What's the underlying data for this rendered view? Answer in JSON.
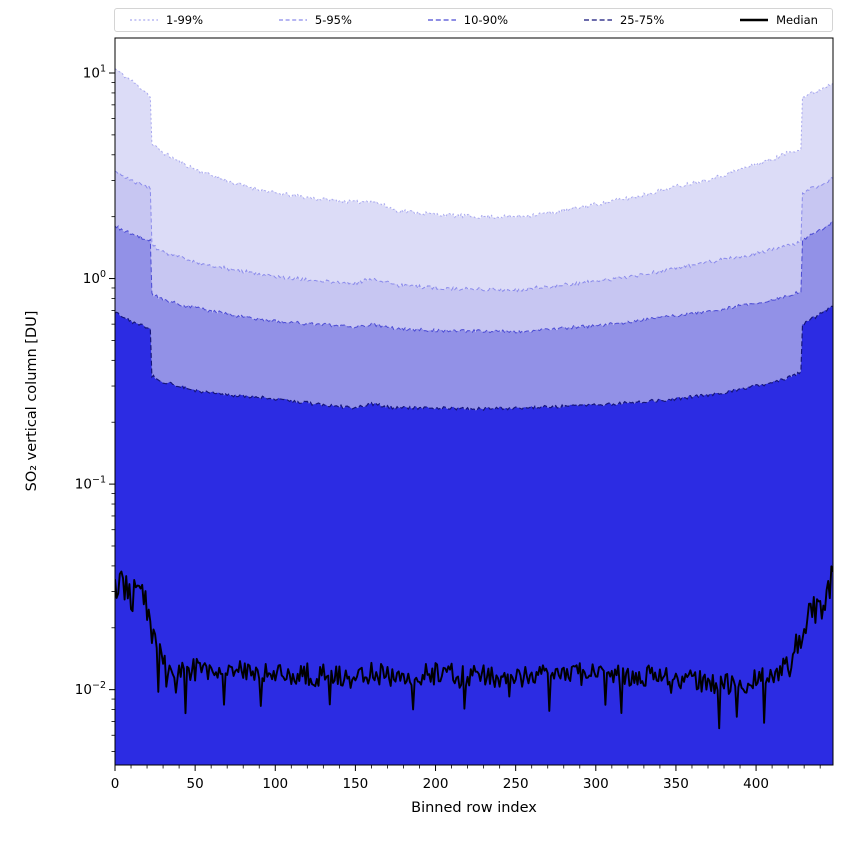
{
  "figure": {
    "background": "#ffffff"
  },
  "chart_data": {
    "type": "band",
    "title": "",
    "xlabel": "Binned row index",
    "ylabel": "SO₂ vertical column [DU]",
    "xscale": "linear",
    "yscale": "log",
    "grid": false,
    "legend_position": "top",
    "xlim": [
      0,
      448
    ],
    "ylim": [
      0.0043,
      14.8
    ],
    "xticks": [
      0,
      50,
      100,
      150,
      200,
      250,
      300,
      350,
      400
    ],
    "x_minor_step": 10,
    "yticks": [
      {
        "value": 0.01,
        "exp": "−2"
      },
      {
        "value": 0.1,
        "exp": "−1"
      },
      {
        "value": 1,
        "exp": "0"
      },
      {
        "value": 10,
        "exp": "1"
      }
    ],
    "seed": 11,
    "keypoint_x": [
      0,
      5,
      10,
      15,
      20,
      22,
      23,
      30,
      40,
      50,
      75,
      100,
      125,
      150,
      160,
      175,
      200,
      225,
      250,
      275,
      300,
      325,
      350,
      375,
      400,
      410,
      420,
      428,
      429,
      435,
      440,
      448
    ],
    "series": [
      {
        "name": "1-99%",
        "role": "band",
        "fill": "#dcdcf7",
        "edge": "#a9a9ef",
        "dash": "2 2.4",
        "width": 1,
        "noise": 0.01,
        "values": [
          10.5,
          9.8,
          9.2,
          8.6,
          8.0,
          7.6,
          4.5,
          4.1,
          3.7,
          3.4,
          2.9,
          2.6,
          2.45,
          2.35,
          2.4,
          2.15,
          2.05,
          2.0,
          2.0,
          2.1,
          2.3,
          2.5,
          2.8,
          3.1,
          3.6,
          3.8,
          4.1,
          4.3,
          7.6,
          8.0,
          8.3,
          9.0
        ]
      },
      {
        "name": "5-95%",
        "role": "band",
        "fill": "#c7c6f2",
        "edge": "#8b8beb",
        "dash": "4 2.6",
        "width": 1,
        "noise": 0.009,
        "values": [
          3.3,
          3.15,
          3.0,
          2.9,
          2.8,
          2.75,
          1.45,
          1.35,
          1.27,
          1.2,
          1.1,
          1.02,
          0.98,
          0.95,
          1.0,
          0.93,
          0.9,
          0.89,
          0.88,
          0.92,
          0.97,
          1.03,
          1.12,
          1.22,
          1.32,
          1.38,
          1.45,
          1.5,
          2.6,
          2.75,
          2.85,
          3.1
        ]
      },
      {
        "name": "10-90%",
        "role": "band",
        "fill": "#9291e7",
        "edge": "#4b4bd4",
        "dash": "5 2.8",
        "width": 1,
        "noise": 0.008,
        "values": [
          1.8,
          1.72,
          1.65,
          1.6,
          1.55,
          1.52,
          0.84,
          0.79,
          0.75,
          0.72,
          0.66,
          0.62,
          0.6,
          0.58,
          0.6,
          0.57,
          0.56,
          0.555,
          0.55,
          0.57,
          0.59,
          0.62,
          0.66,
          0.7,
          0.76,
          0.79,
          0.83,
          0.86,
          1.55,
          1.65,
          1.72,
          1.9
        ]
      },
      {
        "name": "25-75%",
        "role": "band",
        "fill": "#2c2ce3",
        "edge": "#15157a",
        "dash": "5 2.8",
        "width": 1.15,
        "noise": 0.008,
        "values": [
          0.68,
          0.65,
          0.62,
          0.6,
          0.575,
          0.565,
          0.335,
          0.315,
          0.3,
          0.285,
          0.27,
          0.26,
          0.245,
          0.235,
          0.245,
          0.235,
          0.235,
          0.232,
          0.235,
          0.238,
          0.242,
          0.25,
          0.26,
          0.275,
          0.3,
          0.31,
          0.33,
          0.35,
          0.6,
          0.64,
          0.67,
          0.73
        ]
      },
      {
        "name": "Median",
        "role": "line",
        "fill": "none",
        "edge": "#000000",
        "dash": "",
        "width": 1.9,
        "noise": 0.055,
        "values": [
          0.034,
          0.031,
          0.029,
          0.027,
          0.026,
          0.0255,
          0.02,
          0.0135,
          0.0125,
          0.0125,
          0.0122,
          0.012,
          0.0118,
          0.0115,
          0.012,
          0.0118,
          0.012,
          0.0118,
          0.0115,
          0.0118,
          0.012,
          0.0118,
          0.0115,
          0.0105,
          0.011,
          0.012,
          0.0135,
          0.016,
          0.019,
          0.023,
          0.026,
          0.036
        ]
      }
    ]
  }
}
